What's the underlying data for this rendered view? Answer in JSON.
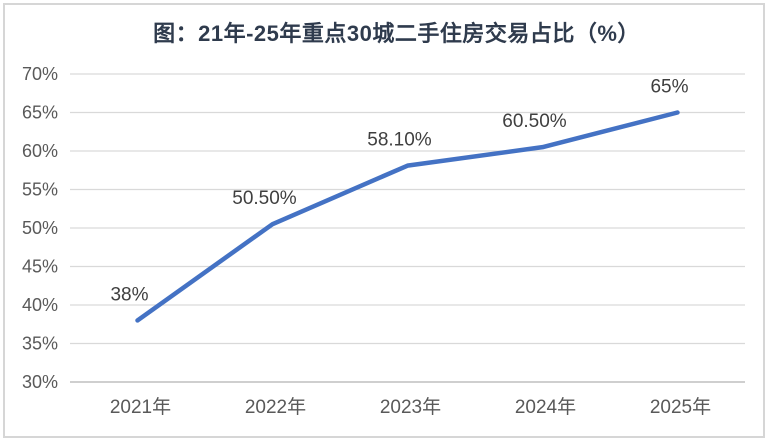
{
  "chart_data": {
    "type": "line",
    "title": "图：21年-25年重点30城二手住房交易占比（%）",
    "categories": [
      "2021年",
      "2022年",
      "2023年",
      "2024年",
      "2025年"
    ],
    "values": [
      38,
      50.5,
      58.1,
      60.5,
      65
    ],
    "data_labels": [
      "38%",
      "50.50%",
      "58.10%",
      "60.50%",
      "65%"
    ],
    "xlabel": "",
    "ylabel": "",
    "ylim": [
      30,
      70
    ],
    "ytick_step": 5,
    "ytick_suffix": "%",
    "grid": true,
    "legend": "none",
    "line_color": "#4472C4",
    "gridline_color": "#D9D9D9",
    "axis_line_color": "#BFBFBF",
    "axis_label_color": "#595959",
    "data_label_color": "#3F3F3F",
    "title_color": "#2F3B4D"
  }
}
